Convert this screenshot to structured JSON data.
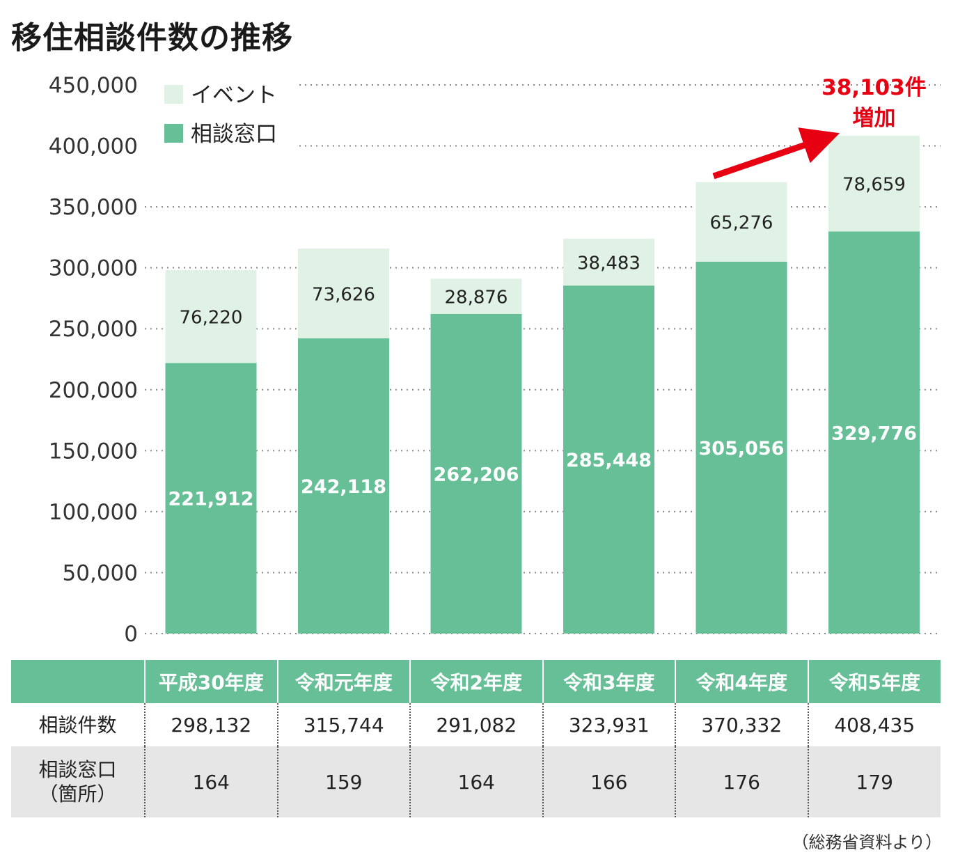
{
  "title": "移住相談件数の推移",
  "chart_data": {
    "type": "bar",
    "stacked": true,
    "categories": [
      "平成30年度",
      "令和元年度",
      "令和2年度",
      "令和3年度",
      "令和4年度",
      "令和5年度"
    ],
    "series": [
      {
        "name": "相談窓口",
        "values": [
          221912,
          242118,
          262206,
          285448,
          305056,
          329776
        ],
        "color": "#66bf96"
      },
      {
        "name": "イベント",
        "values": [
          76220,
          73626,
          28876,
          38483,
          65276,
          78659
        ],
        "color": "#e0f1e6"
      }
    ],
    "counter_labels": [
      "221,912",
      "242,118",
      "262,206",
      "285,448",
      "305,056",
      "329,776"
    ],
    "event_labels": [
      "76,220",
      "73,626",
      "28,876",
      "38,483",
      "65,276",
      "78,659"
    ],
    "ylim": [
      0,
      450000
    ],
    "yticks": [
      0,
      50000,
      100000,
      150000,
      200000,
      250000,
      300000,
      350000,
      400000,
      450000
    ],
    "ytick_labels": [
      "0",
      "50,000",
      "100,000",
      "150,000",
      "200,000",
      "250,000",
      "300,000",
      "350,000",
      "400,000",
      "450,000"
    ],
    "grid": "dotted-horizontal",
    "legend_position": "top-left",
    "annotation": {
      "line1": "38,103件",
      "line2": "増加",
      "from_index": 4,
      "to_index": 5
    }
  },
  "table": {
    "headers": [
      "",
      "平成30年度",
      "令和元年度",
      "令和2年度",
      "令和3年度",
      "令和4年度",
      "令和5年度"
    ],
    "rows": [
      {
        "label_lines": [
          "相談件数"
        ],
        "values": [
          "298,132",
          "315,744",
          "291,082",
          "323,931",
          "370,332",
          "408,435"
        ]
      },
      {
        "label_lines": [
          "相談窓口",
          "（箇所）"
        ],
        "values": [
          "164",
          "159",
          "164",
          "166",
          "176",
          "179"
        ]
      }
    ]
  },
  "source_note": "（総務省資料より）",
  "colors": {
    "counter": "#66bf96",
    "event": "#e0f1e6",
    "accent": "#e60012",
    "header_bg": "#66bf96",
    "row_alt_bg": "#e6e6e6"
  }
}
